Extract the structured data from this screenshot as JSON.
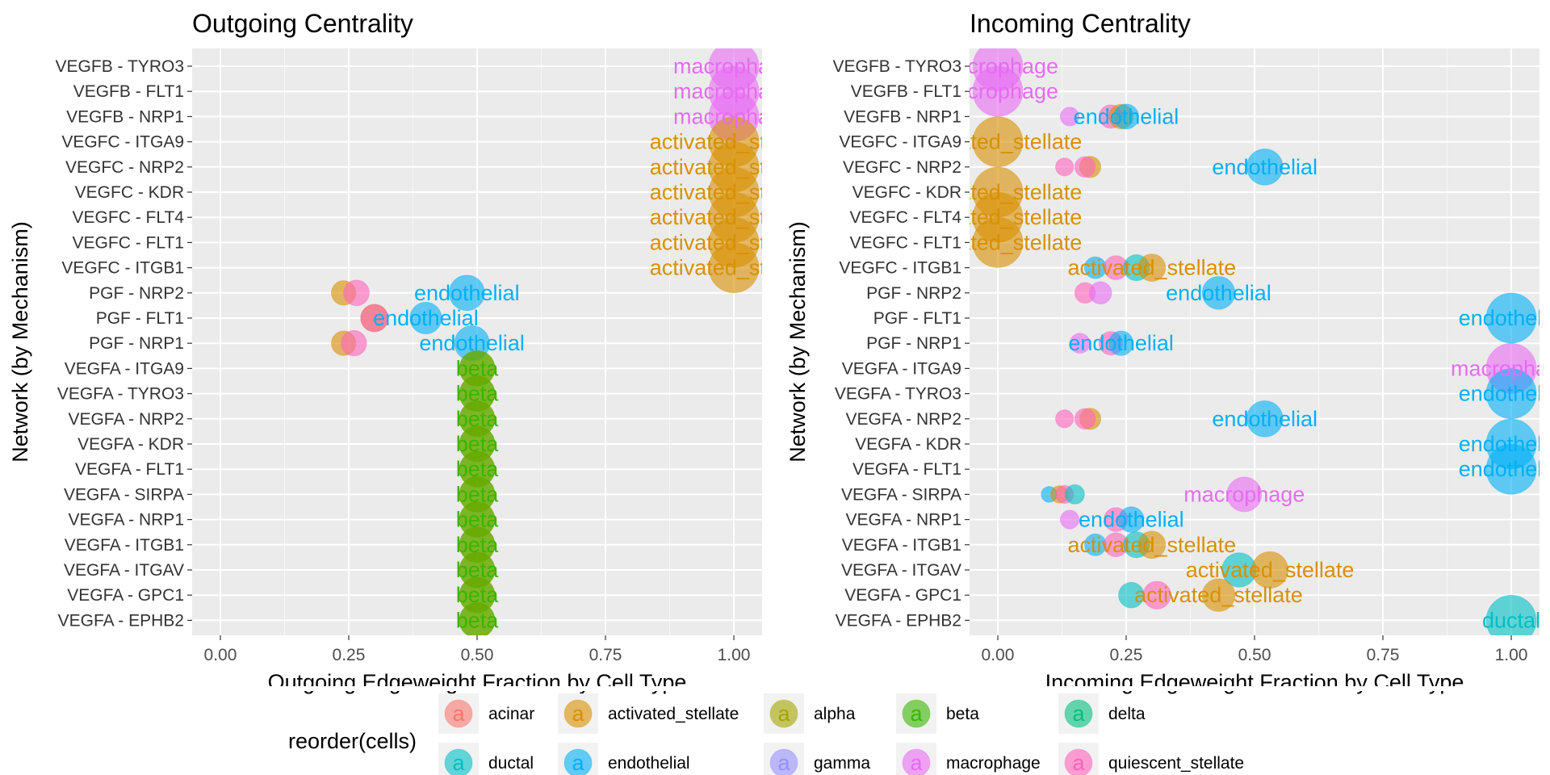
{
  "colors": {
    "acinar": "#F8766D",
    "activated_stellate": "#D89000",
    "alpha": "#A3A500",
    "beta": "#39B600",
    "delta": "#00BF7D",
    "ductal": "#00BFC4",
    "endothelial": "#00B0F6",
    "gamma": "#9590FF",
    "macrophage": "#E76BF3",
    "quiescent_stellate": "#FF62BC"
  },
  "legend": {
    "title": "reorder(cells)",
    "glyph": "a",
    "items": [
      "acinar",
      "activated_stellate",
      "alpha",
      "beta",
      "delta",
      "ductal",
      "endothelial",
      "gamma",
      "macrophage",
      "quiescent_stellate"
    ]
  },
  "chart_data": [
    {
      "type": "scatter",
      "title": "Outgoing Centrality",
      "xlabel": "Outgoing Edgeweight Fraction by Cell Type",
      "ylabel": "Network (by Mechanism)",
      "xlim": [
        0,
        1
      ],
      "xticks": [
        "0.00",
        "0.25",
        "0.50",
        "0.75",
        "1.00"
      ],
      "categories": [
        "VEGFB - TYRO3",
        "VEGFB - FLT1",
        "VEGFB - NRP1",
        "VEGFC - ITGA9",
        "VEGFC - NRP2",
        "VEGFC - KDR",
        "VEGFC - FLT4",
        "VEGFC - FLT1",
        "VEGFC - ITGB1",
        "PGF - NRP2",
        "PGF - FLT1",
        "PGF - NRP1",
        "VEGFA - ITGA9",
        "VEGFA - TYRO3",
        "VEGFA - NRP2",
        "VEGFA - KDR",
        "VEGFA - FLT1",
        "VEGFA - SIRPA",
        "VEGFA - NRP1",
        "VEGFA - ITGB1",
        "VEGFA - ITGAV",
        "VEGFA - GPC1",
        "VEGFA - EPHB2"
      ],
      "points": [
        {
          "y": "VEGFB - TYRO3",
          "x": 1.0,
          "cell": "macrophage",
          "size": 1.0,
          "label": "macrophage"
        },
        {
          "y": "VEGFB - FLT1",
          "x": 1.0,
          "cell": "macrophage",
          "size": 1.0,
          "label": "macrophage"
        },
        {
          "y": "VEGFB - NRP1",
          "x": 1.0,
          "cell": "macrophage",
          "size": 1.0,
          "label": "macrophage"
        },
        {
          "y": "VEGFC - ITGA9",
          "x": 1.0,
          "cell": "activated_stellate",
          "size": 1.0,
          "label": "activated_stellate"
        },
        {
          "y": "VEGFC - NRP2",
          "x": 1.0,
          "cell": "activated_stellate",
          "size": 1.0,
          "label": "activated_stellate"
        },
        {
          "y": "VEGFC - KDR",
          "x": 1.0,
          "cell": "activated_stellate",
          "size": 1.0,
          "label": "activated_stellate"
        },
        {
          "y": "VEGFC - FLT4",
          "x": 1.0,
          "cell": "activated_stellate",
          "size": 1.0,
          "label": "activated_stellate"
        },
        {
          "y": "VEGFC - FLT1",
          "x": 1.0,
          "cell": "activated_stellate",
          "size": 1.0,
          "label": "activated_stellate"
        },
        {
          "y": "VEGFC - ITGB1",
          "x": 1.0,
          "cell": "activated_stellate",
          "size": 1.0,
          "label": "activated_stellate"
        },
        {
          "y": "PGF - NRP2",
          "x": 0.24,
          "cell": "activated_stellate",
          "size": 0.24
        },
        {
          "y": "PGF - NRP2",
          "x": 0.265,
          "cell": "quiescent_stellate",
          "size": 0.265
        },
        {
          "y": "PGF - NRP2",
          "x": 0.48,
          "cell": "endothelial",
          "size": 0.5,
          "label": "endothelial"
        },
        {
          "y": "PGF - FLT1",
          "x": 0.3,
          "cell": "activated_stellate",
          "size": 0.3
        },
        {
          "y": "PGF - FLT1",
          "x": 0.3,
          "cell": "quiescent_stellate",
          "size": 0.3
        },
        {
          "y": "PGF - FLT1",
          "x": 0.4,
          "cell": "endothelial",
          "size": 0.4,
          "label": "endothelial"
        },
        {
          "y": "PGF - NRP1",
          "x": 0.24,
          "cell": "activated_stellate",
          "size": 0.24
        },
        {
          "y": "PGF - NRP1",
          "x": 0.26,
          "cell": "quiescent_stellate",
          "size": 0.26
        },
        {
          "y": "PGF - NRP1",
          "x": 0.49,
          "cell": "endothelial",
          "size": 0.49,
          "label": "endothelial"
        },
        {
          "y": "VEGFA - ITGA9",
          "x": 0.5,
          "cell": "activated_stellate",
          "size": 0.5
        },
        {
          "y": "VEGFA - ITGA9",
          "x": 0.5,
          "cell": "beta",
          "size": 0.5,
          "label": "beta"
        },
        {
          "y": "VEGFA - TYRO3",
          "x": 0.5,
          "cell": "activated_stellate",
          "size": 0.5
        },
        {
          "y": "VEGFA - TYRO3",
          "x": 0.5,
          "cell": "beta",
          "size": 0.5,
          "label": "beta"
        },
        {
          "y": "VEGFA - NRP2",
          "x": 0.5,
          "cell": "activated_stellate",
          "size": 0.5
        },
        {
          "y": "VEGFA - NRP2",
          "x": 0.5,
          "cell": "beta",
          "size": 0.5,
          "label": "beta"
        },
        {
          "y": "VEGFA - KDR",
          "x": 0.5,
          "cell": "activated_stellate",
          "size": 0.5
        },
        {
          "y": "VEGFA - KDR",
          "x": 0.5,
          "cell": "beta",
          "size": 0.5,
          "label": "beta"
        },
        {
          "y": "VEGFA - FLT1",
          "x": 0.5,
          "cell": "activated_stellate",
          "size": 0.5
        },
        {
          "y": "VEGFA - FLT1",
          "x": 0.5,
          "cell": "beta",
          "size": 0.5,
          "label": "beta"
        },
        {
          "y": "VEGFA - SIRPA",
          "x": 0.5,
          "cell": "activated_stellate",
          "size": 0.5
        },
        {
          "y": "VEGFA - SIRPA",
          "x": 0.5,
          "cell": "beta",
          "size": 0.5,
          "label": "beta"
        },
        {
          "y": "VEGFA - NRP1",
          "x": 0.5,
          "cell": "activated_stellate",
          "size": 0.5
        },
        {
          "y": "VEGFA - NRP1",
          "x": 0.5,
          "cell": "beta",
          "size": 0.5,
          "label": "beta"
        },
        {
          "y": "VEGFA - ITGB1",
          "x": 0.5,
          "cell": "activated_stellate",
          "size": 0.5
        },
        {
          "y": "VEGFA - ITGB1",
          "x": 0.5,
          "cell": "beta",
          "size": 0.5,
          "label": "beta"
        },
        {
          "y": "VEGFA - ITGAV",
          "x": 0.5,
          "cell": "activated_stellate",
          "size": 0.5
        },
        {
          "y": "VEGFA - ITGAV",
          "x": 0.5,
          "cell": "beta",
          "size": 0.5,
          "label": "beta"
        },
        {
          "y": "VEGFA - GPC1",
          "x": 0.5,
          "cell": "activated_stellate",
          "size": 0.5
        },
        {
          "y": "VEGFA - GPC1",
          "x": 0.5,
          "cell": "beta",
          "size": 0.5,
          "label": "beta"
        },
        {
          "y": "VEGFA - EPHB2",
          "x": 0.5,
          "cell": "activated_stellate",
          "size": 0.5
        },
        {
          "y": "VEGFA - EPHB2",
          "x": 0.5,
          "cell": "beta",
          "size": 0.5,
          "label": "beta"
        }
      ]
    },
    {
      "type": "scatter",
      "title": "Incoming Centrality",
      "xlabel": "Incoming Edgeweight Fraction by Cell Type",
      "ylabel": "Network (by Mechanism)",
      "xlim": [
        0,
        1
      ],
      "xticks": [
        "0.00",
        "0.25",
        "0.50",
        "0.75",
        "1.00"
      ],
      "categories": [
        "VEGFB - TYRO3",
        "VEGFB - FLT1",
        "VEGFB - NRP1",
        "VEGFC - ITGA9",
        "VEGFC - NRP2",
        "VEGFC - KDR",
        "VEGFC - FLT4",
        "VEGFC - FLT1",
        "VEGFC - ITGB1",
        "PGF - NRP2",
        "PGF - FLT1",
        "PGF - NRP1",
        "VEGFA - ITGA9",
        "VEGFA - TYRO3",
        "VEGFA - NRP2",
        "VEGFA - KDR",
        "VEGFA - FLT1",
        "VEGFA - SIRPA",
        "VEGFA - NRP1",
        "VEGFA - ITGB1",
        "VEGFA - ITGAV",
        "VEGFA - GPC1",
        "VEGFA - EPHB2"
      ],
      "points": [
        {
          "y": "VEGFB - TYRO3",
          "x": 0.0,
          "cell": "macrophage",
          "size": 1.0,
          "label": "macrophage"
        },
        {
          "y": "VEGFB - FLT1",
          "x": 0.0,
          "cell": "macrophage",
          "size": 1.0,
          "label": "macrophage"
        },
        {
          "y": "VEGFB - NRP1",
          "x": 0.14,
          "cell": "macrophage",
          "size": 0.14
        },
        {
          "y": "VEGFB - NRP1",
          "x": 0.22,
          "cell": "quiescent_stellate",
          "size": 0.22
        },
        {
          "y": "VEGFB - NRP1",
          "x": 0.24,
          "cell": "activated_stellate",
          "size": 0.24
        },
        {
          "y": "VEGFB - NRP1",
          "x": 0.25,
          "cell": "endothelial",
          "size": 0.25,
          "label": "endothelial"
        },
        {
          "y": "VEGFC - ITGA9",
          "x": 0.0,
          "cell": "activated_stellate",
          "size": 1.0,
          "label": "activated_stellate"
        },
        {
          "y": "VEGFC - NRP2",
          "x": 0.13,
          "cell": "quiescent_stellate",
          "size": 0.13
        },
        {
          "y": "VEGFC - NRP2",
          "x": 0.18,
          "cell": "activated_stellate",
          "size": 0.18
        },
        {
          "y": "VEGFC - NRP2",
          "x": 0.17,
          "cell": "quiescent_stellate",
          "size": 0.17
        },
        {
          "y": "VEGFC - NRP2",
          "x": 0.52,
          "cell": "endothelial",
          "size": 0.52,
          "label": "endothelial"
        },
        {
          "y": "VEGFC - KDR",
          "x": 0.0,
          "cell": "activated_stellate",
          "size": 1.0,
          "label": "activated_stellate"
        },
        {
          "y": "VEGFC - FLT4",
          "x": 0.0,
          "cell": "activated_stellate",
          "size": 1.0,
          "label": "activated_stellate"
        },
        {
          "y": "VEGFC - FLT1",
          "x": 0.0,
          "cell": "activated_stellate",
          "size": 1.0,
          "label": "activated_stellate"
        },
        {
          "y": "VEGFC - ITGB1",
          "x": 0.19,
          "cell": "endothelial",
          "size": 0.19
        },
        {
          "y": "VEGFC - ITGB1",
          "x": 0.23,
          "cell": "quiescent_stellate",
          "size": 0.23
        },
        {
          "y": "VEGFC - ITGB1",
          "x": 0.27,
          "cell": "ductal",
          "size": 0.27
        },
        {
          "y": "VEGFC - ITGB1",
          "x": 0.3,
          "cell": "activated_stellate",
          "size": 0.3,
          "label": "activated_stellate"
        },
        {
          "y": "PGF - NRP2",
          "x": 0.17,
          "cell": "quiescent_stellate",
          "size": 0.17
        },
        {
          "y": "PGF - NRP2",
          "x": 0.2,
          "cell": "macrophage",
          "size": 0.2
        },
        {
          "y": "PGF - NRP2",
          "x": 0.43,
          "cell": "endothelial",
          "size": 0.43,
          "label": "endothelial"
        },
        {
          "y": "PGF - FLT1",
          "x": 1.0,
          "cell": "endothelial",
          "size": 1.0,
          "label": "endothelial"
        },
        {
          "y": "PGF - NRP1",
          "x": 0.16,
          "cell": "macrophage",
          "size": 0.16
        },
        {
          "y": "PGF - NRP1",
          "x": 0.22,
          "cell": "quiescent_stellate",
          "size": 0.22
        },
        {
          "y": "PGF - NRP1",
          "x": 0.24,
          "cell": "endothelial",
          "size": 0.24,
          "label": "endothelial"
        },
        {
          "y": "VEGFA - ITGA9",
          "x": 1.0,
          "cell": "macrophage",
          "size": 1.0,
          "label": "macrophage"
        },
        {
          "y": "VEGFA - TYRO3",
          "x": 1.0,
          "cell": "endothelial",
          "size": 1.0,
          "label": "endothelial"
        },
        {
          "y": "VEGFA - NRP2",
          "x": 0.13,
          "cell": "quiescent_stellate",
          "size": 0.13
        },
        {
          "y": "VEGFA - NRP2",
          "x": 0.18,
          "cell": "activated_stellate",
          "size": 0.18
        },
        {
          "y": "VEGFA - NRP2",
          "x": 0.17,
          "cell": "quiescent_stellate",
          "size": 0.17
        },
        {
          "y": "VEGFA - NRP2",
          "x": 0.52,
          "cell": "endothelial",
          "size": 0.52,
          "label": "endothelial"
        },
        {
          "y": "VEGFA - KDR",
          "x": 1.0,
          "cell": "endothelial",
          "size": 1.0,
          "label": "endothelial"
        },
        {
          "y": "VEGFA - FLT1",
          "x": 1.0,
          "cell": "endothelial",
          "size": 1.0,
          "label": "endothelial"
        },
        {
          "y": "VEGFA - SIRPA",
          "x": 0.1,
          "cell": "endothelial",
          "size": 0.1
        },
        {
          "y": "VEGFA - SIRPA",
          "x": 0.12,
          "cell": "activated_stellate",
          "size": 0.12
        },
        {
          "y": "VEGFA - SIRPA",
          "x": 0.13,
          "cell": "quiescent_stellate",
          "size": 0.13
        },
        {
          "y": "VEGFA - SIRPA",
          "x": 0.15,
          "cell": "ductal",
          "size": 0.15
        },
        {
          "y": "VEGFA - SIRPA",
          "x": 0.48,
          "cell": "macrophage",
          "size": 0.48,
          "label": "macrophage"
        },
        {
          "y": "VEGFA - NRP1",
          "x": 0.14,
          "cell": "macrophage",
          "size": 0.14
        },
        {
          "y": "VEGFA - NRP1",
          "x": 0.23,
          "cell": "quiescent_stellate",
          "size": 0.23
        },
        {
          "y": "VEGFA - NRP1",
          "x": 0.26,
          "cell": "endothelial",
          "size": 0.26,
          "label": "endothelial"
        },
        {
          "y": "VEGFA - ITGB1",
          "x": 0.19,
          "cell": "endothelial",
          "size": 0.19
        },
        {
          "y": "VEGFA - ITGB1",
          "x": 0.23,
          "cell": "quiescent_stellate",
          "size": 0.23
        },
        {
          "y": "VEGFA - ITGB1",
          "x": 0.27,
          "cell": "ductal",
          "size": 0.27
        },
        {
          "y": "VEGFA - ITGB1",
          "x": 0.3,
          "cell": "activated_stellate",
          "size": 0.3,
          "label": "activated_stellate"
        },
        {
          "y": "VEGFA - ITGAV",
          "x": 0.47,
          "cell": "ductal",
          "size": 0.47
        },
        {
          "y": "VEGFA - ITGAV",
          "x": 0.53,
          "cell": "activated_stellate",
          "size": 0.53,
          "label": "activated_stellate"
        },
        {
          "y": "VEGFA - GPC1",
          "x": 0.26,
          "cell": "ductal",
          "size": 0.26
        },
        {
          "y": "VEGFA - GPC1",
          "x": 0.31,
          "cell": "quiescent_stellate",
          "size": 0.31
        },
        {
          "y": "VEGFA - GPC1",
          "x": 0.43,
          "cell": "activated_stellate",
          "size": 0.43,
          "label": "activated_stellate"
        },
        {
          "y": "VEGFA - EPHB2",
          "x": 1.0,
          "cell": "ductal",
          "size": 1.0,
          "label": "ductal"
        }
      ]
    }
  ]
}
